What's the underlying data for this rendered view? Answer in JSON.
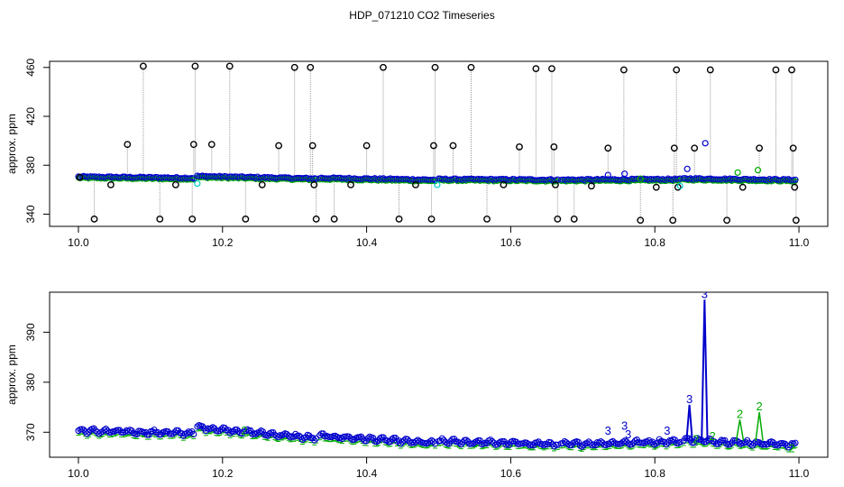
{
  "title": "HDP_071210  CO2 Timeseries",
  "colors": {
    "black_points": "#000000",
    "blue": "#0000cc",
    "green": "#00aa00",
    "cyan": "#00cccc",
    "grey_line": "#999999"
  },
  "chart_data": [
    {
      "type": "line",
      "panel": "top",
      "ylabel": "approx. ppm",
      "xlim": [
        10.0,
        11.0
      ],
      "ylim": [
        330,
        465
      ],
      "xticks": [
        10.0,
        10.2,
        10.4,
        10.6,
        10.8,
        11.0
      ],
      "xtick_labels": [
        "10.0",
        "10.2",
        "10.4",
        "10.6",
        "10.8",
        "11.0"
      ],
      "yticks": [
        340,
        380,
        420,
        460
      ],
      "ytick_labels": [
        "340",
        "380",
        "420",
        "460"
      ],
      "baseline_segments": [
        {
          "x0": 10.0,
          "x1": 10.16,
          "y0": 370.5,
          "y1": 369.5
        },
        {
          "x0": 10.165,
          "x1": 10.33,
          "y0": 371.0,
          "y1": 369.0
        },
        {
          "x0": 10.335,
          "x1": 10.495,
          "y0": 369.5,
          "y1": 368.0
        },
        {
          "x0": 10.5,
          "x1": 10.665,
          "y0": 368.5,
          "y1": 368.0
        },
        {
          "x0": 10.67,
          "x1": 10.835,
          "y0": 368.0,
          "y1": 368.5
        },
        {
          "x0": 10.84,
          "x1": 10.995,
          "y0": 369.0,
          "y1": 368.0
        }
      ],
      "spikes": [
        {
          "x": 10.002,
          "y": 370
        },
        {
          "x": 10.022,
          "y": 336
        },
        {
          "x": 10.045,
          "y": 364
        },
        {
          "x": 10.068,
          "y": 397
        },
        {
          "x": 10.09,
          "y": 461
        },
        {
          "x": 10.113,
          "y": 336
        },
        {
          "x": 10.135,
          "y": 364
        },
        {
          "x": 10.158,
          "y": 336
        },
        {
          "x": 10.16,
          "y": 397
        },
        {
          "x": 10.162,
          "y": 461
        },
        {
          "x": 10.185,
          "y": 397
        },
        {
          "x": 10.21,
          "y": 461
        },
        {
          "x": 10.232,
          "y": 336
        },
        {
          "x": 10.255,
          "y": 364
        },
        {
          "x": 10.278,
          "y": 396
        },
        {
          "x": 10.3,
          "y": 460
        },
        {
          "x": 10.322,
          "y": 460
        },
        {
          "x": 10.325,
          "y": 396
        },
        {
          "x": 10.327,
          "y": 364
        },
        {
          "x": 10.33,
          "y": 336
        },
        {
          "x": 10.355,
          "y": 336
        },
        {
          "x": 10.378,
          "y": 364
        },
        {
          "x": 10.4,
          "y": 396
        },
        {
          "x": 10.423,
          "y": 460
        },
        {
          "x": 10.445,
          "y": 336
        },
        {
          "x": 10.468,
          "y": 364
        },
        {
          "x": 10.49,
          "y": 336
        },
        {
          "x": 10.493,
          "y": 396
        },
        {
          "x": 10.495,
          "y": 460
        },
        {
          "x": 10.52,
          "y": 396
        },
        {
          "x": 10.545,
          "y": 460
        },
        {
          "x": 10.567,
          "y": 336
        },
        {
          "x": 10.59,
          "y": 364
        },
        {
          "x": 10.612,
          "y": 395
        },
        {
          "x": 10.635,
          "y": 459
        },
        {
          "x": 10.657,
          "y": 459
        },
        {
          "x": 10.66,
          "y": 395
        },
        {
          "x": 10.662,
          "y": 364
        },
        {
          "x": 10.665,
          "y": 336
        },
        {
          "x": 10.688,
          "y": 336
        },
        {
          "x": 10.712,
          "y": 363
        },
        {
          "x": 10.735,
          "y": 394
        },
        {
          "x": 10.757,
          "y": 458
        },
        {
          "x": 10.78,
          "y": 335
        },
        {
          "x": 10.802,
          "y": 362
        },
        {
          "x": 10.825,
          "y": 335
        },
        {
          "x": 10.827,
          "y": 394
        },
        {
          "x": 10.83,
          "y": 458
        },
        {
          "x": 10.832,
          "y": 362
        },
        {
          "x": 10.855,
          "y": 394
        },
        {
          "x": 10.877,
          "y": 458
        },
        {
          "x": 10.9,
          "y": 335
        },
        {
          "x": 10.922,
          "y": 362
        },
        {
          "x": 10.945,
          "y": 394
        },
        {
          "x": 10.968,
          "y": 458
        },
        {
          "x": 10.99,
          "y": 458
        },
        {
          "x": 10.992,
          "y": 394
        },
        {
          "x": 10.994,
          "y": 362
        },
        {
          "x": 10.996,
          "y": 335
        }
      ],
      "blue_outliers": [
        {
          "x": 10.845,
          "y": 377
        },
        {
          "x": 10.87,
          "y": 398
        },
        {
          "x": 10.758,
          "y": 373
        },
        {
          "x": 10.735,
          "y": 372
        }
      ],
      "green_outliers": [
        {
          "x": 10.915,
          "y": 374
        },
        {
          "x": 10.943,
          "y": 376
        },
        {
          "x": 10.78,
          "y": 369
        }
      ],
      "cyan_outliers": [
        {
          "x": 10.165,
          "y": 365
        },
        {
          "x": 10.498,
          "y": 364
        },
        {
          "x": 10.835,
          "y": 363
        }
      ]
    },
    {
      "type": "line",
      "panel": "bottom",
      "ylabel": "approx. ppm",
      "xlim": [
        10.0,
        11.0
      ],
      "ylim": [
        365,
        398
      ],
      "xticks": [
        10.0,
        10.2,
        10.4,
        10.6,
        10.8,
        11.0
      ],
      "xtick_labels": [
        "10.0",
        "10.2",
        "10.4",
        "10.6",
        "10.8",
        "11.0"
      ],
      "yticks": [
        370,
        380,
        390
      ],
      "ytick_labels": [
        "370",
        "380",
        "390"
      ],
      "segments": [
        {
          "x0": 10.0,
          "x1": 10.16,
          "y0": 370.3,
          "y1": 369.8
        },
        {
          "x0": 10.165,
          "x1": 10.33,
          "y0": 371.0,
          "y1": 368.8
        },
        {
          "x0": 10.335,
          "x1": 10.495,
          "y0": 369.3,
          "y1": 367.8
        },
        {
          "x0": 10.5,
          "x1": 10.665,
          "y0": 368.2,
          "y1": 367.6
        },
        {
          "x0": 10.67,
          "x1": 10.835,
          "y0": 367.6,
          "y1": 368.2
        },
        {
          "x0": 10.84,
          "x1": 10.995,
          "y0": 368.5,
          "y1": 367.5
        }
      ],
      "blue_peaks": [
        {
          "x": 10.848,
          "y": 375.5,
          "label": "3"
        },
        {
          "x": 10.869,
          "y": 396.5,
          "label": "3"
        }
      ],
      "green_peaks": [
        {
          "x": 10.918,
          "y": 372.5,
          "label": "2"
        },
        {
          "x": 10.945,
          "y": 374.0,
          "label": "2"
        }
      ],
      "point_labels": [
        {
          "x": 10.735,
          "y": 369.5,
          "text": "3",
          "series": "blue"
        },
        {
          "x": 10.758,
          "y": 370.5,
          "text": "3",
          "series": "blue"
        },
        {
          "x": 10.763,
          "y": 368.8,
          "text": "3",
          "series": "blue"
        },
        {
          "x": 10.817,
          "y": 369.5,
          "text": "3",
          "series": "blue"
        },
        {
          "x": 10.857,
          "y": 367.8,
          "text": "2",
          "series": "green"
        },
        {
          "x": 10.88,
          "y": 368.4,
          "text": "2",
          "series": "green"
        },
        {
          "x": 10.99,
          "y": 366.0,
          "text": "2",
          "series": "green"
        },
        {
          "x": 10.23,
          "y": 369.5,
          "text": "2",
          "series": "green"
        }
      ]
    }
  ]
}
